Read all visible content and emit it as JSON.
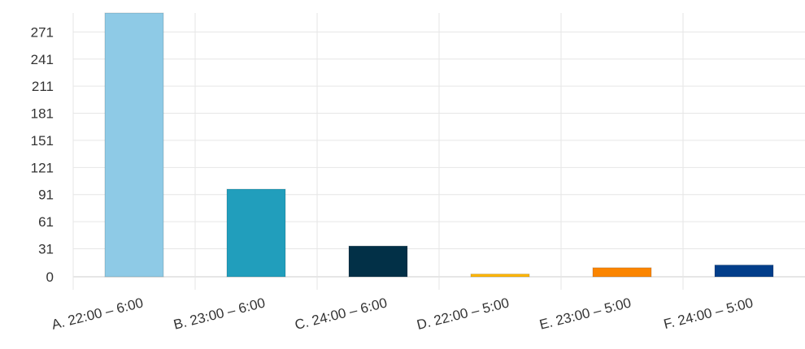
{
  "chart_data": {
    "type": "bar",
    "categories": [
      "A. 22:00 – 6:00",
      "B. 23:00 – 6:00",
      "C. 24:00 – 6:00",
      "D. 22:00 – 5:00",
      "E. 23:00 – 5:00",
      "F. 24:00 – 5:00"
    ],
    "values": [
      292,
      97,
      34,
      3,
      10,
      13
    ],
    "colors": [
      "#8ecae6",
      "#219ebc",
      "#023047",
      "#ffb703",
      "#fb8500",
      "#023e8a"
    ],
    "yticks": [
      "0",
      "31",
      "61",
      "91",
      "121",
      "151",
      "181",
      "211",
      "241",
      "271"
    ],
    "ylim": [
      0,
      292
    ],
    "grid": true
  }
}
